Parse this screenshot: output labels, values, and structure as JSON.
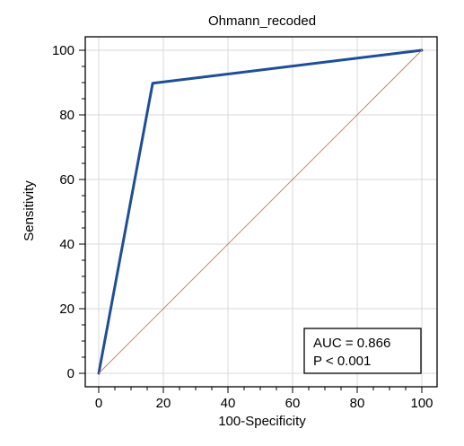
{
  "chart_data": {
    "type": "line",
    "title": "Ohmann_recoded",
    "xlabel": "100-Specificity",
    "ylabel": "Sensitivity",
    "xlim": [
      0,
      100
    ],
    "ylim": [
      0,
      100
    ],
    "xticks": [
      0,
      20,
      40,
      60,
      80,
      100
    ],
    "yticks": [
      0,
      20,
      40,
      60,
      80,
      100
    ],
    "grid": true,
    "series": [
      {
        "role": "roc-curve",
        "color": "#1f4e99",
        "x": [
          0,
          16.7,
          100
        ],
        "y": [
          0,
          89.8,
          100
        ]
      },
      {
        "role": "reference-diagonal",
        "color": "#c0785a",
        "x": [
          0,
          100
        ],
        "y": [
          0,
          100
        ]
      }
    ],
    "annotation": {
      "auc_text": "AUC = 0.866",
      "p_text": "P < 0.001"
    }
  }
}
